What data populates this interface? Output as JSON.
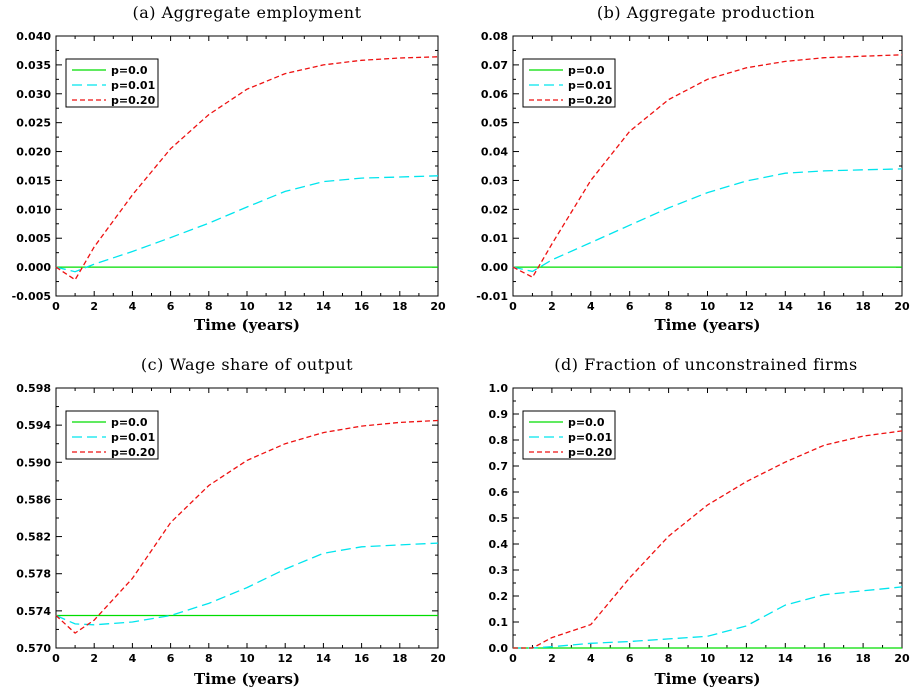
{
  "chart_data": [
    {
      "type": "line",
      "title": "(a) Aggregate employment",
      "xlabel": "Time (years)",
      "ylabel": "",
      "xlim": [
        0,
        20
      ],
      "ylim": [
        -0.005,
        0.04
      ],
      "xticks": [
        "0",
        "2",
        "4",
        "6",
        "8",
        "10",
        "12",
        "14",
        "16",
        "18",
        "20"
      ],
      "yticks": [
        "-0.005",
        "0.000",
        "0.005",
        "0.010",
        "0.015",
        "0.020",
        "0.025",
        "0.030",
        "0.035",
        "0.040"
      ],
      "legend_position": "top-left",
      "x": [
        0,
        1,
        2,
        4,
        6,
        8,
        10,
        12,
        14,
        16,
        18,
        20
      ],
      "series": [
        {
          "name": "p=0.0",
          "color": "#00dd00",
          "dash": "solid",
          "values": [
            0,
            0,
            0,
            0,
            0,
            0,
            0,
            0,
            0,
            0,
            0,
            0
          ]
        },
        {
          "name": "p=0.01",
          "color": "#00e5ee",
          "dash": "long",
          "values": [
            0,
            -0.0008,
            0.0005,
            0.0027,
            0.0051,
            0.0076,
            0.0104,
            0.0131,
            0.0148,
            0.0154,
            0.0156,
            0.0158
          ]
        },
        {
          "name": "p=0.20",
          "color": "#ee1111",
          "dash": "short",
          "values": [
            0,
            -0.0022,
            0.0035,
            0.0125,
            0.0205,
            0.0264,
            0.0308,
            0.0335,
            0.035,
            0.0358,
            0.0362,
            0.0364
          ]
        }
      ]
    },
    {
      "type": "line",
      "title": "(b) Aggregate production",
      "xlabel": "Time (years)",
      "ylabel": "",
      "xlim": [
        0,
        20
      ],
      "ylim": [
        -0.01,
        0.08
      ],
      "xticks": [
        "0",
        "2",
        "4",
        "6",
        "8",
        "10",
        "12",
        "14",
        "16",
        "18",
        "20"
      ],
      "yticks": [
        "-0.01",
        "0.00",
        "0.01",
        "0.02",
        "0.03",
        "0.04",
        "0.05",
        "0.06",
        "0.07",
        "0.08"
      ],
      "legend_position": "top-left",
      "x": [
        0,
        1,
        2,
        4,
        6,
        8,
        10,
        12,
        14,
        16,
        18,
        20
      ],
      "series": [
        {
          "name": "p=0.0",
          "color": "#00dd00",
          "dash": "solid",
          "values": [
            0,
            0,
            0,
            0,
            0,
            0,
            0,
            0,
            0,
            0,
            0,
            0
          ]
        },
        {
          "name": "p=0.01",
          "color": "#00e5ee",
          "dash": "long",
          "values": [
            0,
            -0.0015,
            0.0025,
            0.0085,
            0.0145,
            0.0205,
            0.0258,
            0.0298,
            0.0325,
            0.0333,
            0.0337,
            0.034
          ]
        },
        {
          "name": "p=0.20",
          "color": "#ee1111",
          "dash": "short",
          "values": [
            0,
            -0.0035,
            0.008,
            0.03,
            0.047,
            0.058,
            0.065,
            0.069,
            0.0712,
            0.0725,
            0.073,
            0.0735
          ]
        }
      ]
    },
    {
      "type": "line",
      "title": "(c) Wage share of output",
      "xlabel": "Time (years)",
      "ylabel": "",
      "xlim": [
        0,
        20
      ],
      "ylim": [
        0.57,
        0.598
      ],
      "xticks": [
        "0",
        "2",
        "4",
        "6",
        "8",
        "10",
        "12",
        "14",
        "16",
        "18",
        "20"
      ],
      "yticks": [
        "0.570",
        "0.574",
        "0.578",
        "0.582",
        "0.586",
        "0.590",
        "0.594",
        "0.598"
      ],
      "legend_position": "top-left",
      "x": [
        0,
        1,
        2,
        4,
        6,
        8,
        10,
        12,
        14,
        16,
        18,
        20
      ],
      "series": [
        {
          "name": "p=0.0",
          "color": "#00dd00",
          "dash": "solid",
          "values": [
            0.5735,
            0.5735,
            0.5735,
            0.5735,
            0.5735,
            0.5735,
            0.5735,
            0.5735,
            0.5735,
            0.5735,
            0.5735,
            0.5735
          ]
        },
        {
          "name": "p=0.01",
          "color": "#00e5ee",
          "dash": "long",
          "values": [
            0.5735,
            0.5726,
            0.5725,
            0.5728,
            0.5735,
            0.5748,
            0.5765,
            0.5785,
            0.5802,
            0.5809,
            0.5811,
            0.5813
          ]
        },
        {
          "name": "p=0.20",
          "color": "#ee1111",
          "dash": "short",
          "values": [
            0.5735,
            0.5716,
            0.573,
            0.5775,
            0.5835,
            0.5875,
            0.5902,
            0.592,
            0.5932,
            0.5939,
            0.5943,
            0.5945
          ]
        }
      ]
    },
    {
      "type": "line",
      "title": "(d) Fraction of unconstrained firms",
      "xlabel": "Time (years)",
      "ylabel": "",
      "xlim": [
        0,
        20
      ],
      "ylim": [
        0.0,
        1.0
      ],
      "xticks": [
        "0",
        "2",
        "4",
        "6",
        "8",
        "10",
        "12",
        "14",
        "16",
        "18",
        "20"
      ],
      "yticks": [
        "0.0",
        "0.1",
        "0.2",
        "0.3",
        "0.4",
        "0.5",
        "0.6",
        "0.7",
        "0.8",
        "0.9",
        "1.0"
      ],
      "legend_position": "top-left",
      "x": [
        0,
        1,
        2,
        4,
        6,
        8,
        10,
        12,
        14,
        16,
        18,
        20
      ],
      "series": [
        {
          "name": "p=0.0",
          "color": "#00dd00",
          "dash": "solid",
          "values": [
            0,
            0,
            0,
            0,
            0,
            0,
            0,
            0,
            0,
            0,
            0,
            0
          ]
        },
        {
          "name": "p=0.01",
          "color": "#00e5ee",
          "dash": "long",
          "values": [
            0,
            0,
            0.005,
            0.018,
            0.025,
            0.035,
            0.045,
            0.085,
            0.165,
            0.205,
            0.22,
            0.235
          ]
        },
        {
          "name": "p=0.20",
          "color": "#ee1111",
          "dash": "short",
          "values": [
            0,
            0,
            0.04,
            0.09,
            0.27,
            0.43,
            0.55,
            0.64,
            0.715,
            0.78,
            0.815,
            0.835
          ]
        }
      ]
    }
  ]
}
